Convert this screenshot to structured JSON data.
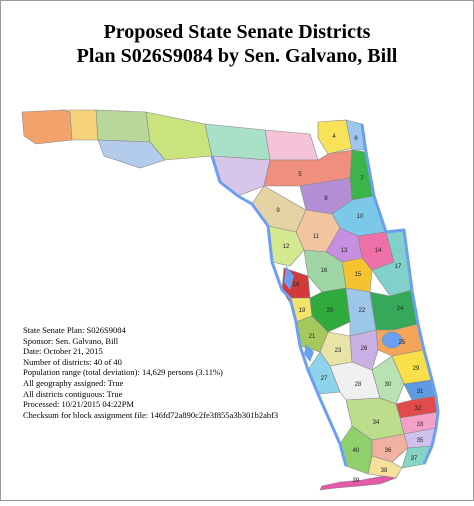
{
  "title_line1": "Proposed State Senate Districts",
  "title_line2": "Plan S026S9084 by Sen. Galvano, Bill",
  "info": {
    "plan": "State Senate Plan: S026S9084",
    "sponsor": "Sponsor: Sen. Galvano, Bill",
    "date": "Date: October 21, 2015",
    "num_districts": "Number of districts: 40 of 40",
    "population": "Population range (total deviation): 14,629 persons (3.11%)",
    "geography": "All geography assigned: True",
    "contiguous": "All districts contiguous: True",
    "processed": "Processed: 10/21/2015 04:22PM",
    "checksum": "Checksum for block assignment file: 146fd72a890c2fe3f855a3b301b2abf3"
  },
  "district_labels": [
    "6",
    "5",
    "4",
    "7",
    "8",
    "9",
    "10",
    "11",
    "12",
    "13",
    "14",
    "15",
    "16",
    "17",
    "18",
    "19",
    "20",
    "21",
    "22",
    "23",
    "24",
    "25",
    "26",
    "27",
    "28",
    "29",
    "30",
    "31",
    "32",
    "33",
    "34",
    "35",
    "36",
    "37",
    "38",
    "39",
    "40"
  ],
  "colors": {
    "water": "#6d9ff0",
    "border": "#8a8a8a"
  }
}
